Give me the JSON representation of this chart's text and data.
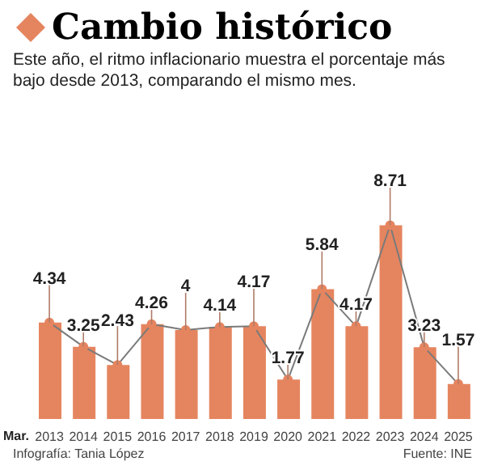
{
  "chart_data": {
    "type": "bar",
    "title": "Cambio histórico",
    "subtitle": "Este año, el ritmo inflacionario muestra el porcentaje más bajo desde 2013, comparando el mismo mes.",
    "xlabel": "Mar.",
    "categories": [
      "2013",
      "2014",
      "2015",
      "2016",
      "2017",
      "2018",
      "2019",
      "2020",
      "2021",
      "2022",
      "2023",
      "2024",
      "2025"
    ],
    "series": [
      {
        "color": "#e5855f",
        "values": [
          4.34,
          3.25,
          2.43,
          4.26,
          4,
          4.14,
          4.17,
          1.77,
          5.84,
          4.17,
          8.71,
          3.23,
          1.57
        ]
      },
      {
        "type": "line",
        "color": "#7a7a7a",
        "values": [
          4.34,
          3.25,
          2.43,
          4.26,
          4,
          4.14,
          4.17,
          1.77,
          5.84,
          4.17,
          8.71,
          3.23,
          1.57
        ],
        "value_labels": [
          "4.34",
          "3.25",
          "2.43",
          "4.26",
          "4",
          "4.14",
          "4.17",
          "1.77",
          "5.84",
          "4.17",
          "8.71",
          "3.23",
          "1.57"
        ]
      }
    ],
    "marker": "circle",
    "annotations": [
      "Infografía: Tania López",
      "Fuente: INE"
    ]
  }
}
